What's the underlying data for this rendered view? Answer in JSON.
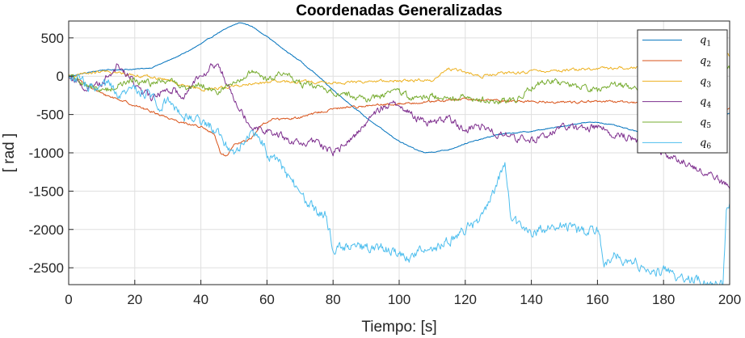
{
  "chart_data": {
    "type": "line",
    "title": "Coordenadas Generalizadas",
    "xlabel": "Tiempo: [s]",
    "ylabel": "[ rad ]",
    "xlim": [
      0,
      200
    ],
    "ylim": [
      -2720,
      720
    ],
    "xticks": [
      "0",
      "20",
      "40",
      "60",
      "80",
      "100",
      "120",
      "140",
      "160",
      "180",
      "200"
    ],
    "yticks": [
      "-2500",
      "-2000",
      "-1500",
      "-1000",
      "-500",
      "0",
      "500"
    ],
    "grid": true,
    "legend_position": "top-right",
    "series": [
      {
        "name": "q1",
        "color": "#0072BD",
        "noise": 5,
        "x": [
          0,
          10,
          20,
          25,
          30,
          35,
          40,
          45,
          50,
          52,
          55,
          60,
          65,
          70,
          75,
          80,
          85,
          90,
          95,
          100,
          105,
          108,
          115,
          120,
          130,
          140,
          150,
          155,
          160,
          165,
          170,
          175,
          180,
          185,
          190,
          195,
          200
        ],
        "y": [
          0,
          80,
          90,
          110,
          200,
          300,
          420,
          560,
          670,
          700,
          660,
          520,
          350,
          200,
          20,
          -180,
          -360,
          -540,
          -700,
          -850,
          -960,
          -1000,
          -960,
          -880,
          -760,
          -720,
          -650,
          -610,
          -600,
          -640,
          -700,
          -760,
          -800,
          -820,
          -760,
          -600,
          -480
        ]
      },
      {
        "name": "q2",
        "color": "#D95319",
        "noise": 12,
        "x": [
          0,
          5,
          10,
          15,
          20,
          25,
          30,
          35,
          40,
          44,
          46,
          48,
          50,
          55,
          58,
          62,
          65,
          70,
          75,
          80,
          85,
          90,
          100,
          110,
          120,
          130,
          140,
          150,
          160,
          170,
          180,
          190,
          200
        ],
        "y": [
          0,
          -100,
          -230,
          -300,
          -380,
          -460,
          -540,
          -610,
          -660,
          -760,
          -1010,
          -1050,
          -900,
          -820,
          -650,
          -550,
          -560,
          -540,
          -480,
          -430,
          -400,
          -390,
          -360,
          -330,
          -300,
          -320,
          -330,
          -340,
          -330,
          -340,
          -360,
          -380,
          -420
        ]
      },
      {
        "name": "q3",
        "color": "#EDB120",
        "noise": 15,
        "x": [
          0,
          10,
          20,
          30,
          40,
          50,
          60,
          70,
          80,
          90,
          100,
          110,
          115,
          120,
          125,
          130,
          140,
          150,
          160,
          170,
          180,
          190,
          195,
          200
        ],
        "y": [
          0,
          60,
          20,
          -50,
          -180,
          -130,
          -80,
          -70,
          -90,
          -70,
          -60,
          -50,
          100,
          50,
          0,
          30,
          60,
          80,
          100,
          110,
          150,
          220,
          420,
          260
        ]
      },
      {
        "name": "q4",
        "color": "#7E2F8E",
        "noise": 40,
        "x": [
          0,
          5,
          10,
          15,
          20,
          25,
          30,
          35,
          40,
          45,
          50,
          55,
          60,
          65,
          70,
          75,
          80,
          85,
          90,
          95,
          100,
          105,
          110,
          115,
          120,
          125,
          130,
          135,
          140,
          145,
          150,
          155,
          160,
          165,
          170,
          175,
          180,
          185,
          190,
          195,
          200
        ],
        "y": [
          0,
          -150,
          -80,
          150,
          -100,
          -300,
          -150,
          -250,
          50,
          150,
          -250,
          -650,
          -700,
          -800,
          -900,
          -850,
          -1000,
          -850,
          -600,
          -400,
          -350,
          -550,
          -600,
          -550,
          -700,
          -650,
          -750,
          -800,
          -850,
          -750,
          -650,
          -700,
          -650,
          -750,
          -800,
          -900,
          -1000,
          -1100,
          -1200,
          -1300,
          -1450
        ]
      },
      {
        "name": "q5",
        "color": "#77AC30",
        "noise": 35,
        "x": [
          0,
          5,
          10,
          15,
          20,
          25,
          30,
          35,
          40,
          45,
          50,
          55,
          60,
          65,
          70,
          75,
          80,
          85,
          90,
          95,
          100,
          105,
          110,
          115,
          120,
          125,
          130,
          135,
          140,
          145,
          150,
          155,
          160,
          165,
          170,
          175,
          180,
          185,
          190,
          195,
          200
        ],
        "y": [
          0,
          -100,
          -200,
          -120,
          -50,
          -100,
          -50,
          -150,
          -100,
          -200,
          -100,
          50,
          -50,
          50,
          -100,
          -150,
          -200,
          -250,
          -300,
          -250,
          -200,
          -300,
          -250,
          -300,
          -250,
          -300,
          -350,
          -300,
          -150,
          -50,
          -100,
          -150,
          -200,
          -100,
          -150,
          -100,
          -150,
          -200,
          -200,
          -100,
          100
        ]
      },
      {
        "name": "q6",
        "color": "#4DBEEE",
        "noise": 55,
        "x": [
          0,
          5,
          8,
          12,
          15,
          20,
          25,
          28,
          30,
          35,
          40,
          45,
          48,
          50,
          55,
          58,
          60,
          65,
          68,
          70,
          73,
          75,
          78,
          80,
          85,
          90,
          95,
          100,
          103,
          105,
          110,
          115,
          120,
          125,
          128,
          132,
          134,
          136,
          140,
          145,
          150,
          155,
          160,
          162,
          165,
          170,
          175,
          180,
          185,
          190,
          195,
          198,
          199,
          200
        ],
        "y": [
          0,
          -100,
          -200,
          -100,
          -300,
          -150,
          -250,
          -400,
          -300,
          -500,
          -600,
          -700,
          -900,
          -1000,
          -750,
          -800,
          -1000,
          -1200,
          -1400,
          -1550,
          -1700,
          -1750,
          -1800,
          -2250,
          -2200,
          -2250,
          -2250,
          -2300,
          -2400,
          -2300,
          -2250,
          -2150,
          -2000,
          -1850,
          -1550,
          -1150,
          -1900,
          -1950,
          -2050,
          -1950,
          -1950,
          -2050,
          -2000,
          -2400,
          -2350,
          -2400,
          -2500,
          -2550,
          -2650,
          -2650,
          -2700,
          -2700,
          -1700,
          -1650
        ]
      }
    ]
  }
}
